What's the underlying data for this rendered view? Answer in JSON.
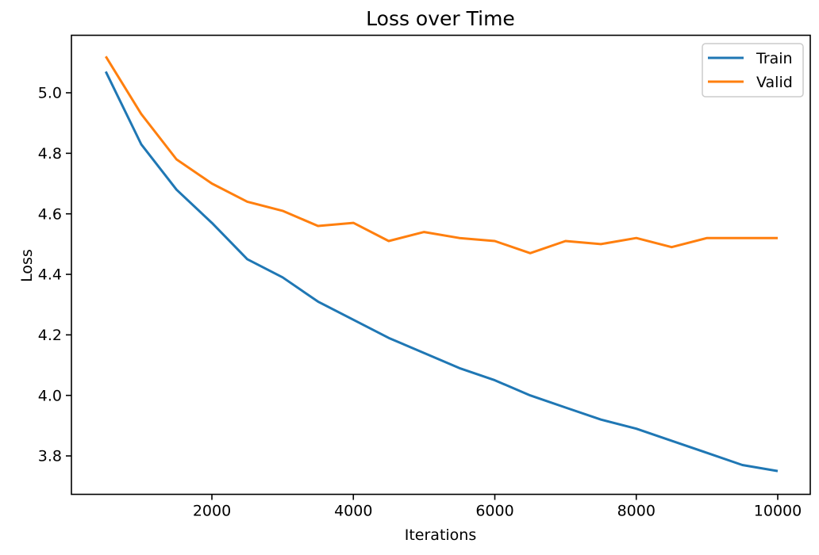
{
  "chart_data": {
    "type": "line",
    "title": "Loss over Time",
    "xlabel": "Iterations",
    "ylabel": "Loss",
    "x": [
      500,
      1000,
      1500,
      2000,
      2500,
      3000,
      3500,
      4000,
      4500,
      5000,
      5500,
      6000,
      6500,
      7000,
      7500,
      8000,
      8500,
      9000,
      9500,
      10000
    ],
    "series": [
      {
        "name": "Train",
        "color": "#1f77b4",
        "values": [
          5.07,
          4.83,
          4.68,
          4.57,
          4.45,
          4.39,
          4.31,
          4.25,
          4.19,
          4.14,
          4.09,
          4.05,
          4.0,
          3.96,
          3.92,
          3.89,
          3.85,
          3.81,
          3.77,
          3.75
        ]
      },
      {
        "name": "Valid",
        "color": "#ff7f0e",
        "values": [
          5.12,
          4.93,
          4.78,
          4.7,
          4.64,
          4.61,
          4.56,
          4.57,
          4.51,
          4.54,
          4.52,
          4.51,
          4.47,
          4.51,
          4.5,
          4.52,
          4.49,
          4.52,
          4.52,
          4.52
        ]
      }
    ],
    "xlim": [
      14,
      10460
    ],
    "ylim": [
      3.673,
      5.19
    ],
    "xticks": [
      2000,
      4000,
      6000,
      8000,
      10000
    ],
    "xtick_labels": [
      "2000",
      "4000",
      "6000",
      "8000",
      "10000"
    ],
    "yticks": [
      5.0,
      4.8,
      4.6,
      4.4,
      4.2,
      4.0,
      3.8
    ],
    "ytick_labels": [
      "5.0",
      "4.8",
      "4.6",
      "4.4",
      "4.2",
      "4.0",
      "3.8"
    ],
    "grid": false,
    "legend_position": "upper right",
    "frame_color": "#000000",
    "legend_border_color": "#cccccc"
  }
}
